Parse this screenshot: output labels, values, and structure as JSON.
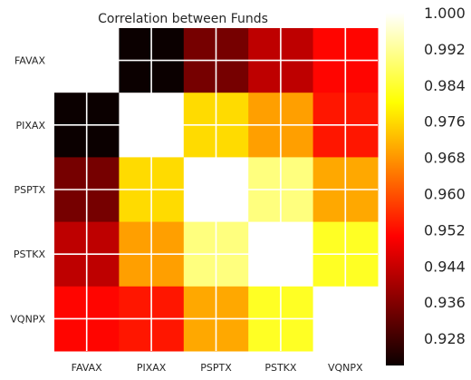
{
  "chart_data": {
    "type": "heatmap",
    "title": "Correlation between Funds",
    "xlabel": "",
    "ylabel": "",
    "x_categories": [
      "FAVAX",
      "PIXAX",
      "PSPTX",
      "PSTKX",
      "VQNPX"
    ],
    "y_categories": [
      "FAVAX",
      "PIXAX",
      "PSPTX",
      "PSTKX",
      "VQNPX"
    ],
    "values": [
      [
        1.0,
        0.922,
        0.934,
        0.942,
        0.951
      ],
      [
        0.922,
        1.0,
        0.976,
        0.969,
        0.953
      ],
      [
        0.934,
        0.976,
        1.0,
        0.99,
        0.97
      ],
      [
        0.942,
        0.969,
        0.99,
        1.0,
        0.983
      ],
      [
        0.951,
        0.953,
        0.97,
        0.983,
        1.0
      ]
    ],
    "colormap": "hot",
    "vmin": 0.922,
    "vmax": 1.0,
    "grid": true,
    "colorbar": {
      "ticks": [
        "0.928",
        "0.936",
        "0.944",
        "0.952",
        "0.960",
        "0.968",
        "0.976",
        "0.984",
        "0.992",
        "1.000"
      ],
      "placement": "right"
    }
  }
}
